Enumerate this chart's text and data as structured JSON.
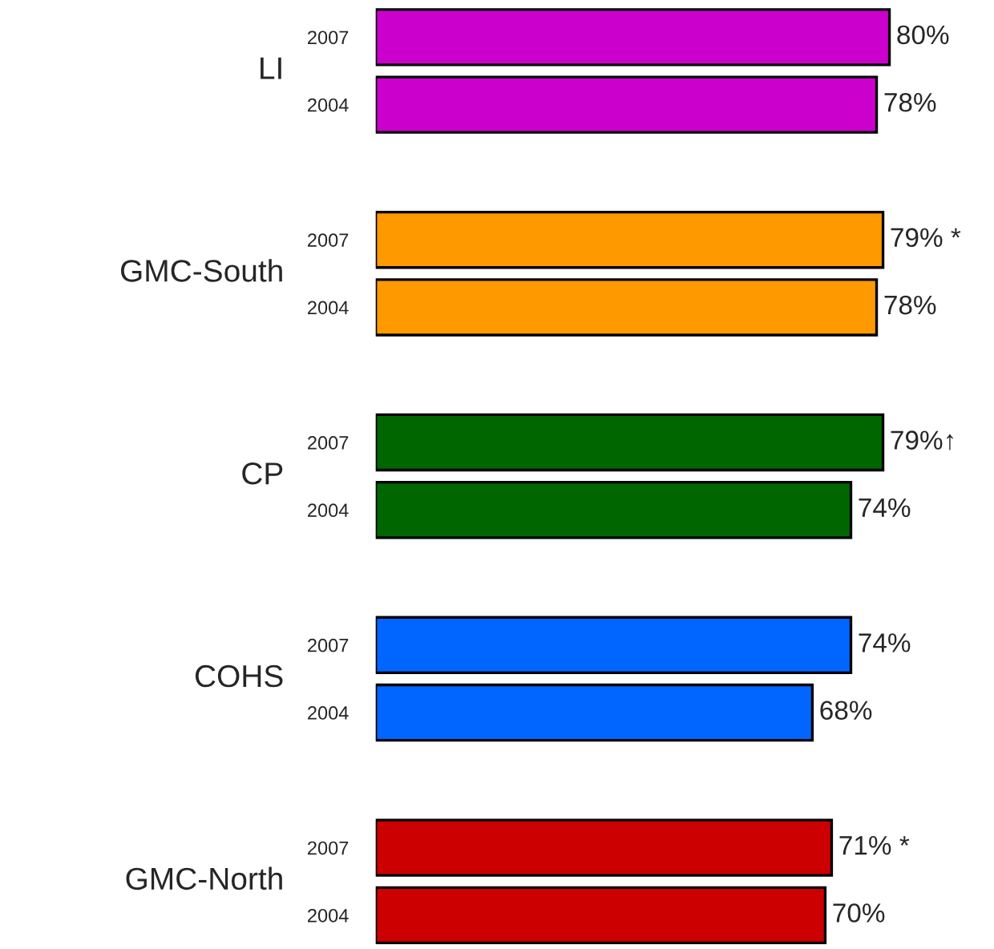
{
  "chart_data": {
    "type": "bar",
    "orientation": "horizontal",
    "categories": [
      "2007",
      "2004",
      null,
      "2007",
      "2004",
      null,
      "2007",
      "2004",
      null,
      "2007",
      "2004",
      null,
      "2007",
      "2004"
    ],
    "values": [
      80,
      78,
      null,
      79,
      78,
      null,
      79,
      74,
      null,
      74,
      68,
      null,
      71,
      70
    ],
    "colors": [
      "#cc00cc",
      "#cc00cc",
      null,
      "#ff9900",
      "#ff9900",
      null,
      "#006600",
      "#006600",
      null,
      "#0066ff",
      "#0066ff",
      null,
      "#cc0000",
      "#cc0000"
    ],
    "value_labels": [
      "80%",
      "78%",
      null,
      "79% *",
      "78%",
      null,
      "79%↑",
      "74%",
      null,
      "74%",
      "68%",
      null,
      "71% *",
      "70%"
    ],
    "annotations": [
      "LI",
      "GMC-South",
      "CP",
      "COHS",
      "GMC-North"
    ],
    "tick_labels": "y",
    "grid": false,
    "legend": false
  }
}
